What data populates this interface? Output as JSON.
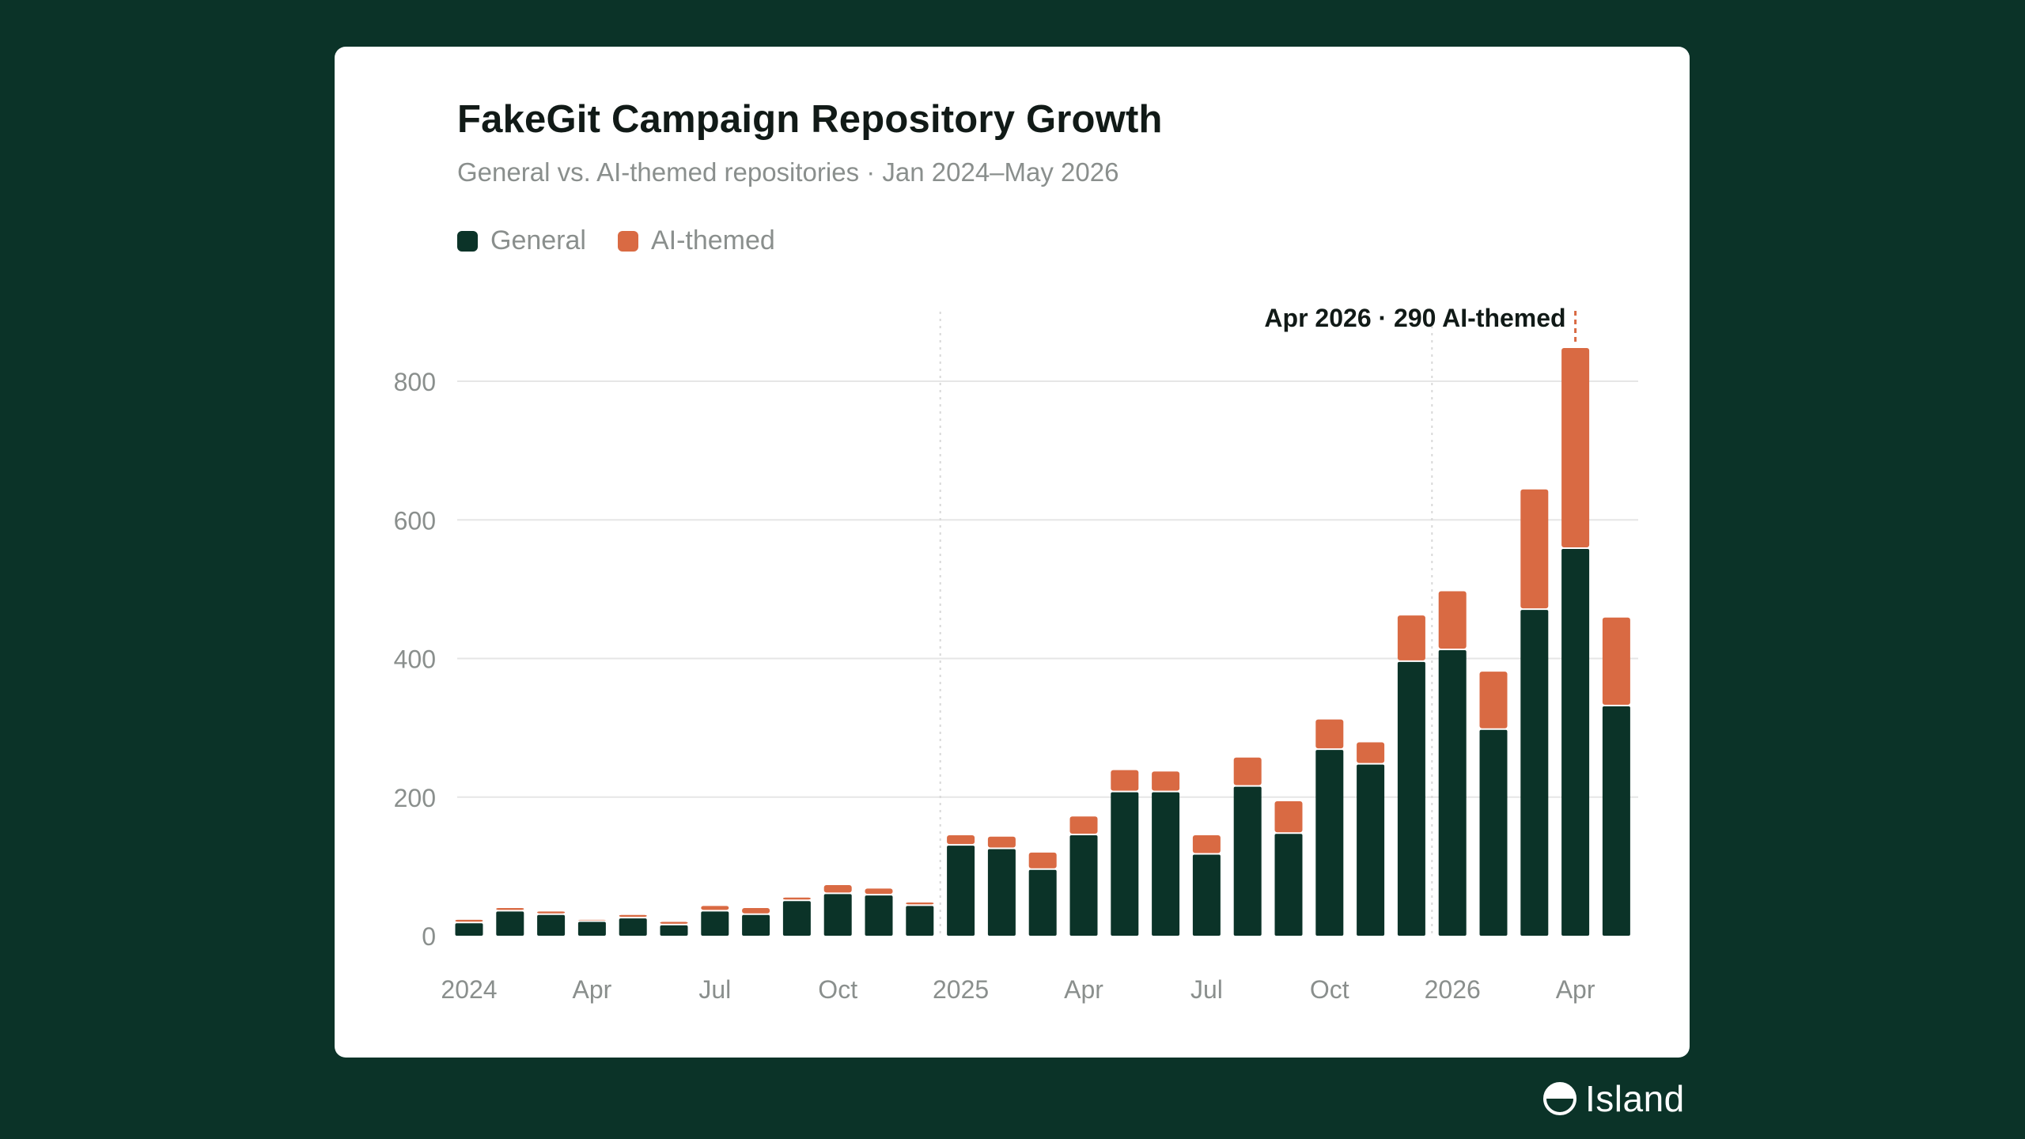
{
  "title": "FakeGit Campaign Repository Growth",
  "subtitle": "General vs. AI-themed repositories · Jan 2024–May 2026",
  "brand": {
    "name": "Island"
  },
  "colors": {
    "background": "#0b3328",
    "general": "#0b3328",
    "ai_themed": "#d96a43",
    "grid": "#e6e6e6",
    "axis_text": "#8a8f8d"
  },
  "legend": [
    {
      "label": "General",
      "color": "#0b3328"
    },
    {
      "label": "AI-themed",
      "color": "#d96a43"
    }
  ],
  "chart_data": {
    "type": "bar",
    "stacked": true,
    "months": [
      "2024-01",
      "2024-02",
      "2024-03",
      "2024-04",
      "2024-05",
      "2024-06",
      "2024-07",
      "2024-08",
      "2024-09",
      "2024-10",
      "2024-11",
      "2024-12",
      "2025-01",
      "2025-02",
      "2025-03",
      "2025-04",
      "2025-05",
      "2025-06",
      "2025-07",
      "2025-08",
      "2025-09",
      "2025-10",
      "2025-11",
      "2025-12",
      "2026-01",
      "2026-02",
      "2026-03",
      "2026-04",
      "2026-05"
    ],
    "x_tick_labels": [
      {
        "month": "2024-01",
        "label": "2024"
      },
      {
        "month": "2024-04",
        "label": "Apr"
      },
      {
        "month": "2024-07",
        "label": "Jul"
      },
      {
        "month": "2024-10",
        "label": "Oct"
      },
      {
        "month": "2025-01",
        "label": "2025"
      },
      {
        "month": "2025-04",
        "label": "Apr"
      },
      {
        "month": "2025-07",
        "label": "Jul"
      },
      {
        "month": "2025-10",
        "label": "Oct"
      },
      {
        "month": "2026-01",
        "label": "2026"
      },
      {
        "month": "2026-04",
        "label": "Apr"
      }
    ],
    "year_boundaries": [
      "2025-01",
      "2026-01"
    ],
    "series": [
      {
        "name": "General",
        "values": [
          18,
          35,
          30,
          20,
          25,
          15,
          35,
          30,
          50,
          60,
          58,
          43,
          130,
          125,
          95,
          145,
          207,
          207,
          117,
          215,
          147,
          268,
          247,
          395,
          412,
          297,
          470,
          558,
          331
        ]
      },
      {
        "name": "AI-themed",
        "values": [
          5,
          5,
          5,
          3,
          5,
          5,
          8,
          10,
          5,
          13,
          10,
          5,
          15,
          18,
          25,
          27,
          32,
          30,
          28,
          42,
          47,
          44,
          32,
          67,
          85,
          84,
          174,
          290,
          128
        ]
      }
    ],
    "y_ticks": [
      0,
      200,
      400,
      600,
      800
    ],
    "ylim": [
      0,
      850
    ],
    "grid": true,
    "annotation": {
      "month": "2026-04",
      "text": "Apr 2026 · 290 AI-themed"
    }
  }
}
